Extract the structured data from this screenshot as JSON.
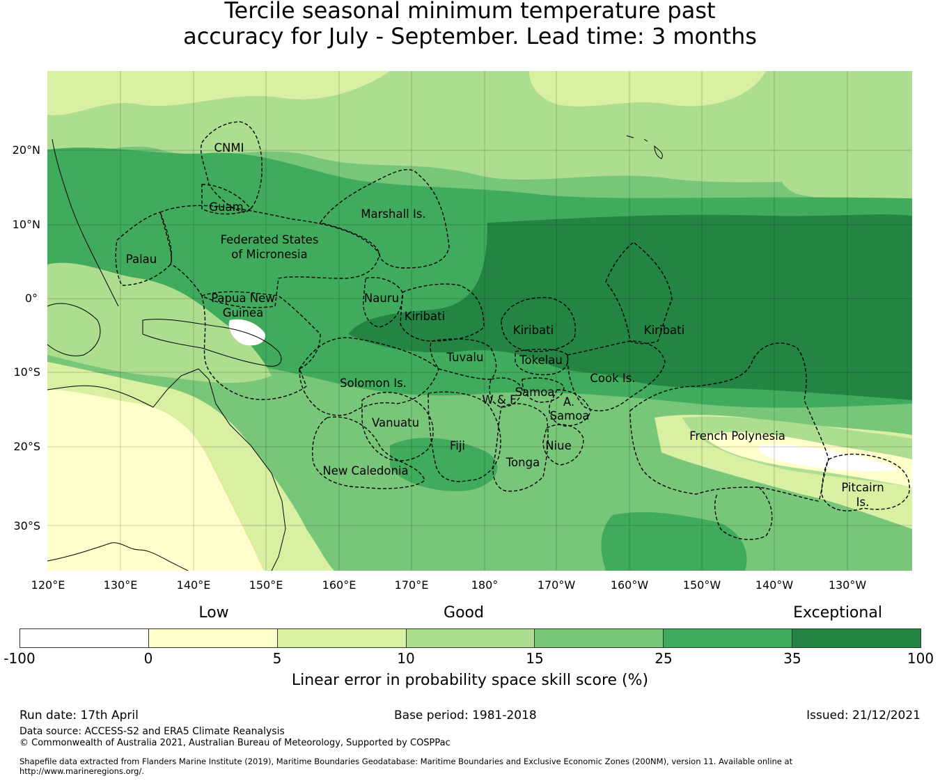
{
  "title": {
    "line1": "Tercile seasonal minimum temperature past",
    "line2": "accuracy for July - September. Lead time: 3 months"
  },
  "map": {
    "lat_labels": [
      "20°N",
      "10°N",
      "0°",
      "10°S",
      "20°S",
      "30°S"
    ],
    "lon_labels": [
      "120°E",
      "130°E",
      "140°E",
      "150°E",
      "160°E",
      "170°E",
      "180°",
      "170°W",
      "160°W",
      "150°W",
      "140°W",
      "130°W"
    ],
    "region_labels": [
      "CNMI",
      "Guam",
      "Marshall Is.",
      "Federated States",
      "of Micronesia",
      "Palau",
      "Papua New",
      "Guinea",
      "Nauru",
      "Kiribati",
      "Kiribati",
      "Kiribati",
      "Tuvalu",
      "Tokelau",
      "Cook Is.",
      "Solomon Is.",
      "Samoa",
      "W & F",
      "A.",
      "Samoa",
      "Vanuatu",
      "Fiji",
      "Niue",
      "Tonga",
      "French Polynesia",
      "Pitcairn",
      "Is.",
      "New Caledonia"
    ],
    "skill_colors": {
      "lt0": "#ffffff",
      "0-5": "#ffffcc",
      "5-10": "#d9f0a3",
      "10-15": "#addd8e",
      "15-25": "#78c679",
      "25-35": "#41ab5d",
      "35-100": "#238443"
    }
  },
  "colorbar": {
    "categories": [
      "Low",
      "Good",
      "Exceptional"
    ],
    "ticks": [
      "-100",
      "0",
      "5",
      "10",
      "15",
      "25",
      "35",
      "100"
    ],
    "colors": [
      "#ffffff",
      "#ffffcc",
      "#d9f0a3",
      "#addd8e",
      "#78c679",
      "#41ab5d",
      "#238443"
    ],
    "label": "Linear error in probability space skill score (%)"
  },
  "footer": {
    "run_date": "Run date: 17th April",
    "base_period": "Base period: 1981-2018",
    "issued": "Issued: 21/12/2021",
    "data_source": "Data source: ACCESS-S2 and ERA5 Climate Reanalysis",
    "copyright": "© Commonwealth of Australia 2021, Australian Bureau of Meteorology, Supported by COSPPac",
    "shapefile": "Shapefile data extracted from Flanders Marine Institute (2019), Maritime Boundaries Geodatabase: Maritime Boundaries and Exclusive Economic Zones (200NM), version 11. Available online at http://www.marineregions.org/."
  }
}
